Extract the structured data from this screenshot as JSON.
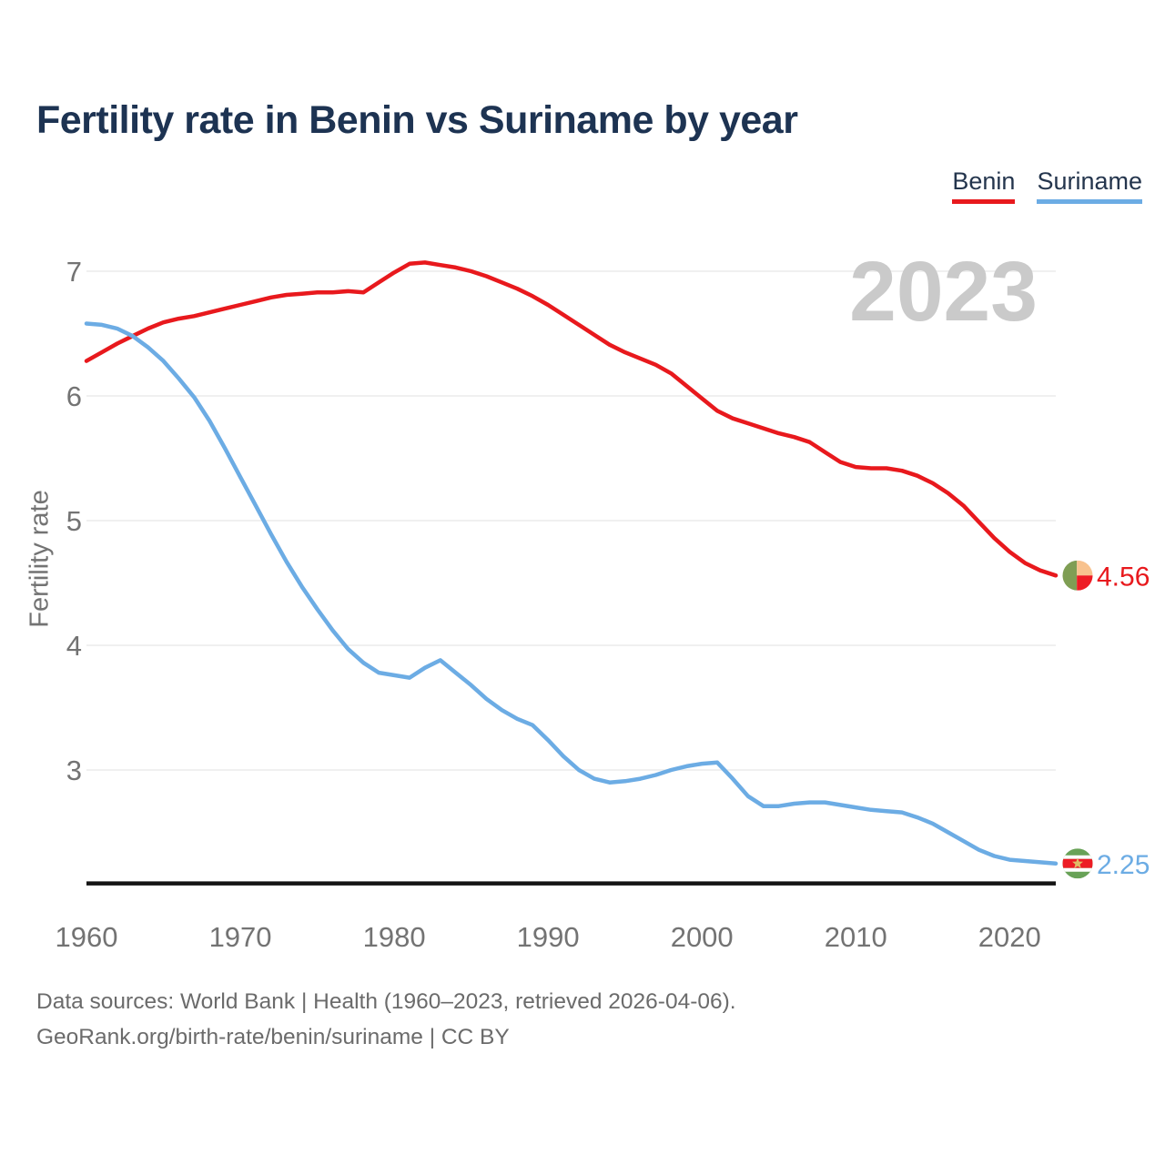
{
  "page": {
    "title": "Fertility rate in Benin vs Suriname by year"
  },
  "legend": [
    {
      "label": "Benin",
      "color": "#e8191d"
    },
    {
      "label": "Suriname",
      "color": "#6cace4"
    }
  ],
  "footer": {
    "line1": "Data sources: World Bank | Health (1960–2023, retrieved 2026-04-06).",
    "line2": "GeoRank.org/birth-rate/benin/suriname | CC BY"
  },
  "chart_data": {
    "type": "line",
    "title": "Fertility rate in Benin vs Suriname by year",
    "xlabel": "",
    "ylabel": "Fertility rate",
    "watermark": "2023",
    "grid": true,
    "legend_position": "top-right",
    "x_start": 1960,
    "x_end": 2023,
    "x_step": 1,
    "x_ticks": [
      1960,
      1970,
      1980,
      1990,
      2000,
      2010,
      2020
    ],
    "y_ticks": [
      7,
      6,
      5,
      4,
      3
    ],
    "ylim": [
      2.09,
      7.3
    ],
    "series": [
      {
        "name": "Benin",
        "color": "#e8191d",
        "end_label": "4.56",
        "flag": "benin",
        "values": [
          6.28,
          6.35,
          6.42,
          6.48,
          6.54,
          6.59,
          6.62,
          6.64,
          6.67,
          6.7,
          6.73,
          6.76,
          6.79,
          6.81,
          6.82,
          6.83,
          6.83,
          6.84,
          6.83,
          6.91,
          6.99,
          7.06,
          7.07,
          7.05,
          7.03,
          7.0,
          6.96,
          6.91,
          6.86,
          6.8,
          6.73,
          6.65,
          6.57,
          6.49,
          6.41,
          6.35,
          6.3,
          6.25,
          6.18,
          6.08,
          5.98,
          5.88,
          5.82,
          5.78,
          5.74,
          5.7,
          5.67,
          5.63,
          5.55,
          5.47,
          5.43,
          5.42,
          5.42,
          5.4,
          5.36,
          5.3,
          5.22,
          5.12,
          4.99,
          4.86,
          4.75,
          4.66,
          4.6,
          4.56
        ]
      },
      {
        "name": "Suriname",
        "color": "#6cace4",
        "end_label": "2.25",
        "flag": "suriname",
        "values": [
          6.58,
          6.57,
          6.54,
          6.48,
          6.39,
          6.28,
          6.14,
          5.99,
          5.8,
          5.58,
          5.35,
          5.12,
          4.89,
          4.67,
          4.47,
          4.29,
          4.12,
          3.97,
          3.86,
          3.78,
          3.76,
          3.74,
          3.82,
          3.88,
          3.78,
          3.68,
          3.57,
          3.48,
          3.41,
          3.36,
          3.24,
          3.11,
          3.0,
          2.93,
          2.9,
          2.91,
          2.93,
          2.96,
          3.0,
          3.03,
          3.05,
          3.06,
          2.93,
          2.79,
          2.71,
          2.71,
          2.73,
          2.74,
          2.74,
          2.72,
          2.7,
          2.68,
          2.67,
          2.66,
          2.62,
          2.57,
          2.5,
          2.43,
          2.36,
          2.31,
          2.28,
          2.27,
          2.26,
          2.25
        ]
      }
    ],
    "flag_colors": {
      "benin": {
        "green": "#7f9e54",
        "yellow": "#f8c28e",
        "red": "#ee1c24"
      },
      "suriname": {
        "green": "#68a257",
        "white": "#ffffff",
        "red": "#ed1c24",
        "star": "#debc66"
      }
    },
    "style": {
      "grid_color": "#e8e8e8",
      "axis_color": "#141414",
      "tick_color": "#737373",
      "watermark_color": "#cacaca"
    }
  }
}
